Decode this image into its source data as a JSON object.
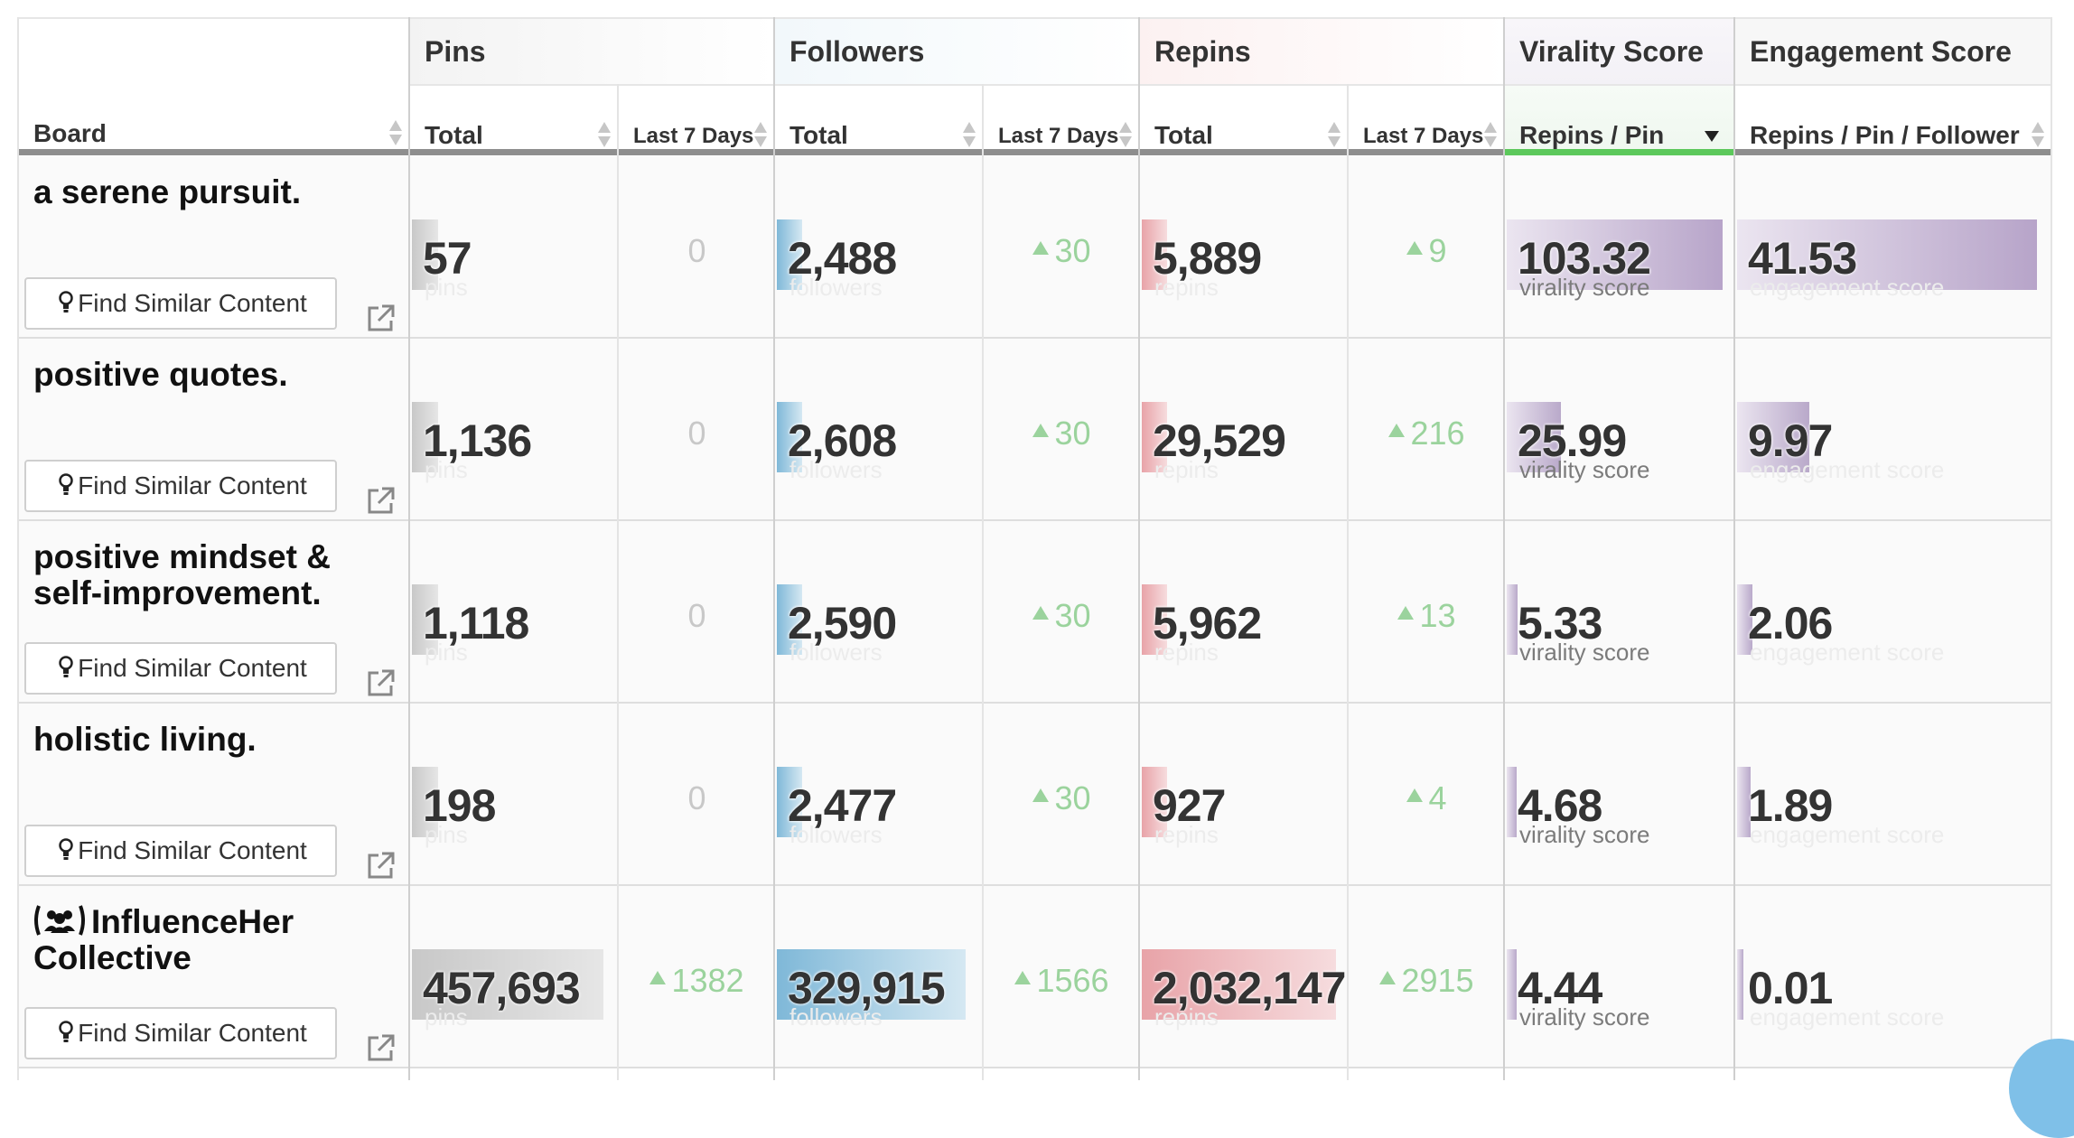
{
  "headers": {
    "board": "Board",
    "groups": {
      "pins": "Pins",
      "followers": "Followers",
      "repins": "Repins",
      "virality": "Virality Score",
      "engagement": "Engagement Score"
    },
    "sub": {
      "total": "Total",
      "last7": "Last 7 Days",
      "repins_per_pin": "Repins / Pin",
      "repins_per_pin_per_follower": "Repins / Pin / Follower"
    }
  },
  "units": {
    "pins": "pins",
    "followers": "followers",
    "repins": "repins",
    "virality": "virality score",
    "engagement": "engagement score"
  },
  "find_similar_label": "Find Similar Content",
  "icons": {
    "sort": "sort-arrows-icon",
    "sort_desc": "sort-descending-icon",
    "bulb": "lightbulb-icon",
    "external": "external-link-icon",
    "group": "group-board-icon",
    "help": "help-icon"
  },
  "colors": {
    "pins_bar": "#c8c8c8",
    "followers_bar": "#7fb8d8",
    "repins_bar": "#e8a3a8",
    "score_bar": "#b9a9ca",
    "delta_up": "#9bd39d",
    "active_sort_underline": "#5cc85b"
  },
  "rows": [
    {
      "board": "a serene pursuit.",
      "pins": "57",
      "pins_fill": 0.06,
      "pins_7d": "0",
      "followers": "2,488",
      "followers_fill": 0.18,
      "followers_7d": "30",
      "repins": "5,889",
      "repins_fill": 0.13,
      "repins_7d": "9",
      "virality": "103.32",
      "virality_fill": 1.0,
      "engagement": "41.53",
      "engagement_fill": 1.0
    },
    {
      "board": "positive quotes.",
      "pins": "1,136",
      "pins_fill": 0.06,
      "pins_7d": "0",
      "followers": "2,608",
      "followers_fill": 0.18,
      "followers_7d": "30",
      "repins": "29,529",
      "repins_fill": 0.13,
      "repins_7d": "216",
      "virality": "25.99",
      "virality_fill": 0.25,
      "engagement": "9.97",
      "engagement_fill": 0.24
    },
    {
      "board": "positive mindset & self-improvement.",
      "pins": "1,118",
      "pins_fill": 0.06,
      "pins_7d": "0",
      "followers": "2,590",
      "followers_fill": 0.18,
      "followers_7d": "30",
      "repins": "5,962",
      "repins_fill": 0.13,
      "repins_7d": "13",
      "virality": "5.33",
      "virality_fill": 0.05,
      "engagement": "2.06",
      "engagement_fill": 0.05
    },
    {
      "board": "holistic living.",
      "pins": "198",
      "pins_fill": 0.06,
      "pins_7d": "0",
      "followers": "2,477",
      "followers_fill": 0.18,
      "followers_7d": "30",
      "repins": "927",
      "repins_fill": 0.13,
      "repins_7d": "4",
      "virality": "4.68",
      "virality_fill": 0.045,
      "engagement": "1.89",
      "engagement_fill": 0.045
    },
    {
      "board": "InfluenceHer Collective",
      "group_board": true,
      "pins": "457,693",
      "pins_fill": 1.0,
      "pins_7d": "1382",
      "followers": "329,915",
      "followers_fill": 1.0,
      "followers_7d": "1566",
      "repins": "2,032,147",
      "repins_fill": 1.0,
      "repins_7d": "2915",
      "virality": "4.44",
      "virality_fill": 0.045,
      "engagement": "0.01",
      "engagement_fill": 0.02
    }
  ]
}
